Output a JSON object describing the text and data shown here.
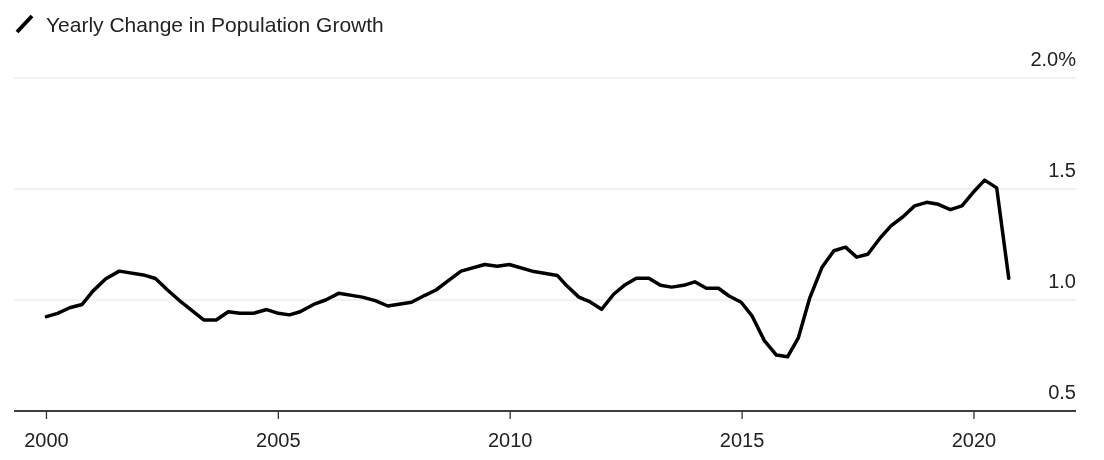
{
  "chart_data": {
    "type": "line",
    "legend": "top left",
    "grid": "y",
    "xlim": [
      1999.3,
      2022.2
    ],
    "xticks": [
      2000,
      2005,
      2010,
      2015,
      2020
    ],
    "ylim": [
      0.5,
      2.0
    ],
    "yticks": [
      {
        "value": 2.0,
        "label": "2.0%"
      },
      {
        "value": 1.5,
        "label": "1.5"
      },
      {
        "value": 1.0,
        "label": "1.0"
      },
      {
        "value": 0.5,
        "label": "0.5"
      }
    ],
    "series": [
      {
        "name": "Yearly Change in Population Growth",
        "color": "#000000",
        "x": [
          2000,
          2000.24,
          2000.5,
          2000.77,
          2001,
          2001.28,
          2001.57,
          2002.09,
          2002.35,
          2002.61,
          2002.91,
          2003.39,
          2003.66,
          2003.92,
          2004.17,
          2004.46,
          2004.75,
          2005,
          2005.24,
          2005.47,
          2005.76,
          2006.02,
          2006.3,
          2006.81,
          2007.09,
          2007.36,
          2007.87,
          2008.15,
          2008.4,
          2008.68,
          2008.94,
          2009.45,
          2009.72,
          2009.98,
          2010.51,
          2011.02,
          2011.21,
          2011.48,
          2011.7,
          2011.97,
          2012.23,
          2012.46,
          2012.72,
          2012.99,
          2013.24,
          2013.48,
          2013.74,
          2013.98,
          2014.23,
          2014.49,
          2014.72,
          2014.98,
          2015.21,
          2015.48,
          2015.74,
          2015.98,
          2016.21,
          2016.46,
          2016.72,
          2016.98,
          2017.23,
          2017.47,
          2017.71,
          2017.96,
          2018.21,
          2018.47,
          2018.72,
          2018.98,
          2019.23,
          2019.49,
          2019.74,
          2019.98,
          2020.23,
          2020.49,
          2020.75
        ],
        "values": [
          0.925,
          0.94,
          0.965,
          0.98,
          1.04,
          1.096,
          1.13,
          1.113,
          1.097,
          1.045,
          0.99,
          0.91,
          0.91,
          0.947,
          0.94,
          0.94,
          0.957,
          0.94,
          0.933,
          0.947,
          0.98,
          1.0,
          1.03,
          1.013,
          0.997,
          0.973,
          0.99,
          1.02,
          1.045,
          1.09,
          1.13,
          1.16,
          1.152,
          1.16,
          1.128,
          1.11,
          1.066,
          1.013,
          0.994,
          0.958,
          1.026,
          1.066,
          1.098,
          1.098,
          1.066,
          1.058,
          1.066,
          1.082,
          1.053,
          1.053,
          1.018,
          0.99,
          0.93,
          0.817,
          0.752,
          0.744,
          0.828,
          1.01,
          1.146,
          1.222,
          1.238,
          1.193,
          1.206,
          1.275,
          1.334,
          1.375,
          1.424,
          1.44,
          1.431,
          1.407,
          1.424,
          1.484,
          1.54,
          1.505,
          1.098
        ]
      }
    ]
  }
}
